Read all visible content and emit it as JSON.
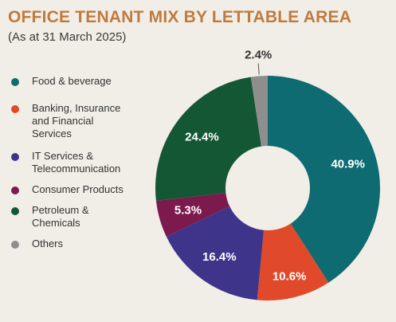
{
  "header": {
    "title": "OFFICE TENANT MIX BY LETTABLE AREA",
    "subtitle": "(As at 31 March 2025)"
  },
  "chart_data": {
    "type": "pie",
    "donut": true,
    "title": "OFFICE TENANT MIX BY LETTABLE AREA",
    "subtitle": "(As at 31 March 2025)",
    "legend_position": "left",
    "slices": [
      {
        "name": "Food & beverage",
        "value": 40.9,
        "label": "40.9%",
        "color": "#0f6b72"
      },
      {
        "name": "Banking, Insurance\nand Financial\nServices",
        "value": 10.6,
        "label": "10.6%",
        "color": "#e0492a"
      },
      {
        "name": "IT Services &\nTelecommunication",
        "value": 16.4,
        "label": "16.4%",
        "color": "#3e348a"
      },
      {
        "name": "Consumer Products",
        "value": 5.3,
        "label": "5.3%",
        "color": "#7c1a4e"
      },
      {
        "name": "Petroleum &\nChemicals",
        "value": 24.4,
        "label": "24.4%",
        "color": "#145735"
      },
      {
        "name": "Others",
        "value": 2.4,
        "label": "2.4%",
        "color": "#8e8e8e"
      }
    ]
  }
}
